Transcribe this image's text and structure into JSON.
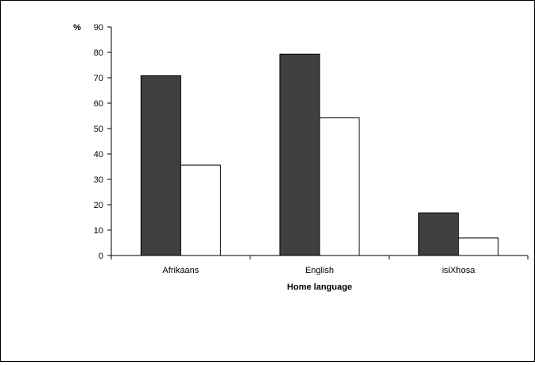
{
  "chart_data": {
    "type": "bar",
    "title": "",
    "xlabel": "Home language",
    "ylabel": "%",
    "ylim": [
      0,
      90
    ],
    "yticks": [
      0,
      10,
      20,
      30,
      40,
      50,
      60,
      70,
      80,
      90
    ],
    "grid": false,
    "legend": "none",
    "categories": [
      "Afrikaans",
      "English",
      "isiXhosa"
    ],
    "series": [
      {
        "values": [
          70.8,
          79.3,
          16.8
        ],
        "color": "#404040"
      },
      {
        "values": [
          35.6,
          54.2,
          6.9
        ],
        "color": "#ffffff"
      }
    ]
  }
}
